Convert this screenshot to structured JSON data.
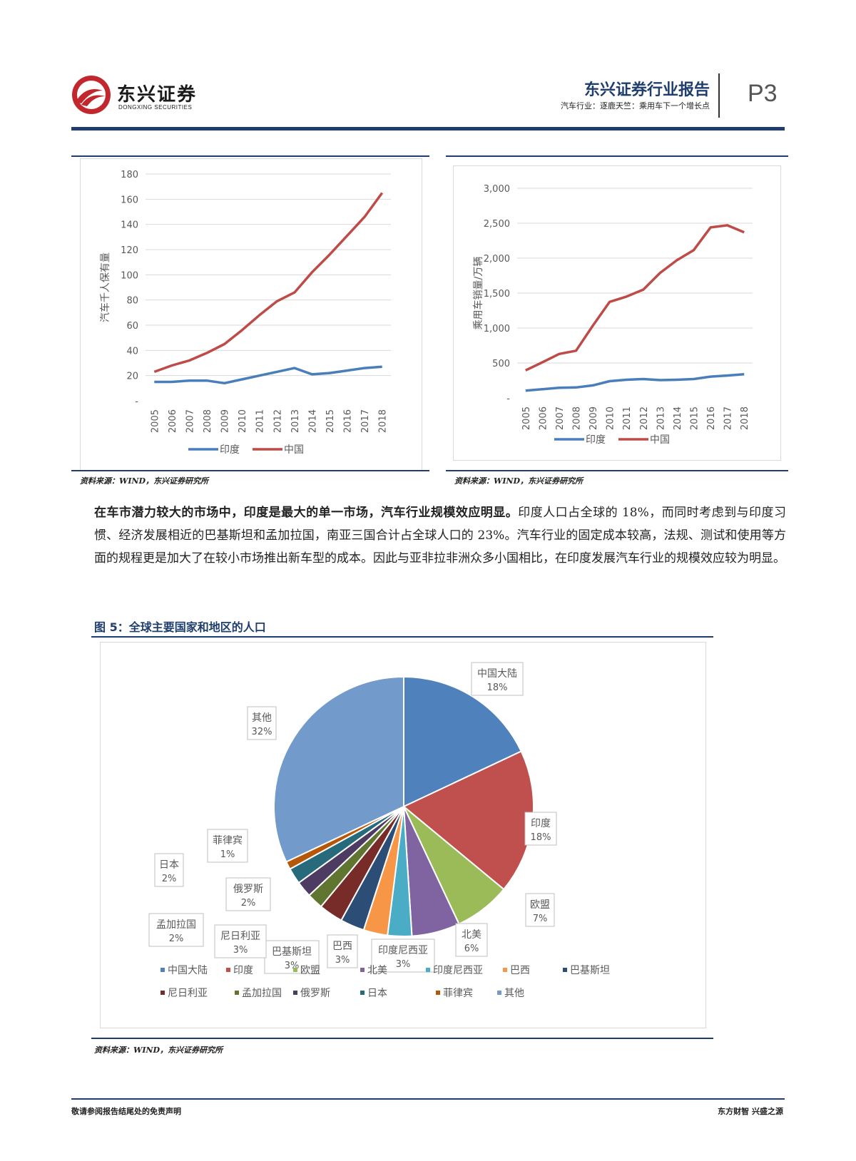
{
  "header": {
    "logo_cn": "东兴证券",
    "logo_en": "DONGXING SECURITIES",
    "report_title": "东兴证券行业报告",
    "report_subtitle": "汽车行业：逐鹿天竺：乘用车下一个增长点",
    "page_number": "P3",
    "brand_color": "#c1272d",
    "accent_color": "#1f3e6e"
  },
  "chart_left_source": "资料来源：WIND，东兴证券研究所",
  "chart_right_source": "资料来源：WIND，东兴证券研究所",
  "paragraph": {
    "bold_lead": "在车市潜力较大的市场中，印度是最大的单一市场，汽车行业规模效应明显。",
    "body": "印度人口占全球的 18%，而同时考虑到与印度习惯、经济发展相近的巴基斯坦和孟加拉国，南亚三国合计占全球人口的 23%。汽车行业的固定成本较高，法规、测试和使用等方面的规程更是加大了在较小市场推出新车型的成本。因此与亚非拉非洲众多小国相比，在印度发展汽车行业的规模效应较为明显。"
  },
  "figure5_title": "图 5：全球主要国家和地区的人口",
  "figure5_source": "资料来源：WIND，东兴证券研究所",
  "footer": {
    "left": "敬请参阅报告结尾处的免责声明",
    "right": "东方财智 兴盛之源"
  },
  "chart_data": [
    {
      "type": "line",
      "x": [
        "2005",
        "2006",
        "2007",
        "2008",
        "2009",
        "2010",
        "2011",
        "2012",
        "2013",
        "2014",
        "2015",
        "2016",
        "2017",
        "2018"
      ],
      "series": [
        {
          "name": "印度",
          "color": "#4a7ebb",
          "values": [
            15,
            15,
            16,
            16,
            14,
            17,
            20,
            23,
            26,
            21,
            22,
            24,
            26,
            27
          ]
        },
        {
          "name": "中国",
          "color": "#be4b48",
          "values": [
            23,
            28,
            32,
            38,
            45,
            56,
            68,
            79,
            86,
            102,
            116,
            131,
            146,
            165
          ]
        }
      ],
      "ylabel": "汽车千人保有量",
      "ylim": [
        0,
        180
      ],
      "yticks": [
        "-",
        "20",
        "40",
        "60",
        "80",
        "100",
        "120",
        "140",
        "160",
        "180"
      ],
      "grid": true,
      "legend": "bottom"
    },
    {
      "type": "line",
      "x": [
        "2005",
        "2006",
        "2007",
        "2008",
        "2009",
        "2010",
        "2011",
        "2012",
        "2013",
        "2014",
        "2015",
        "2016",
        "2017",
        "2018"
      ],
      "series": [
        {
          "name": "印度",
          "color": "#4a7ebb",
          "values": [
            105,
            125,
            145,
            150,
            180,
            240,
            260,
            270,
            255,
            260,
            270,
            305,
            320,
            340
          ]
        },
        {
          "name": "中国",
          "color": "#be4b48",
          "values": [
            395,
            510,
            630,
            676,
            1035,
            1375,
            1450,
            1550,
            1790,
            1970,
            2115,
            2440,
            2470,
            2370
          ]
        }
      ],
      "ylabel": "乘用车销量/万辆",
      "ylim": [
        0,
        3000
      ],
      "yticks": [
        "-",
        "500",
        "1,000",
        "1,500",
        "2,000",
        "2,500",
        "3,000"
      ],
      "grid": true,
      "legend": "bottom"
    },
    {
      "type": "pie",
      "title": "",
      "slices": [
        {
          "name": "中国大陆",
          "value": 18,
          "label": "18%",
          "color": "#4f81bd"
        },
        {
          "name": "印度",
          "value": 18,
          "label": "18%",
          "color": "#c0504d"
        },
        {
          "name": "欧盟",
          "value": 7,
          "label": "7%",
          "color": "#9bbb59"
        },
        {
          "name": "北美",
          "value": 6,
          "label": "6%",
          "color": "#8064a2"
        },
        {
          "name": "印度尼西亚",
          "value": 3,
          "label": "3%",
          "color": "#4bacc6"
        },
        {
          "name": "巴西",
          "value": 3,
          "label": "3%",
          "color": "#f79646"
        },
        {
          "name": "巴基斯坦",
          "value": 3,
          "label": "3%",
          "color": "#2c4d75"
        },
        {
          "name": "尼日利亚",
          "value": 3,
          "label": "3%",
          "color": "#772c2a"
        },
        {
          "name": "孟加拉国",
          "value": 2,
          "label": "2%",
          "color": "#5f7530"
        },
        {
          "name": "俄罗斯",
          "value": 2,
          "label": "2%",
          "color": "#4d3b62"
        },
        {
          "name": "日本",
          "value": 2,
          "label": "2%",
          "color": "#276a7c"
        },
        {
          "name": "菲律宾",
          "value": 1,
          "label": "1%",
          "color": "#b65708"
        },
        {
          "name": "其他",
          "value": 32,
          "label": "32%",
          "color": "#729aca"
        }
      ],
      "legend": "bottom"
    }
  ]
}
